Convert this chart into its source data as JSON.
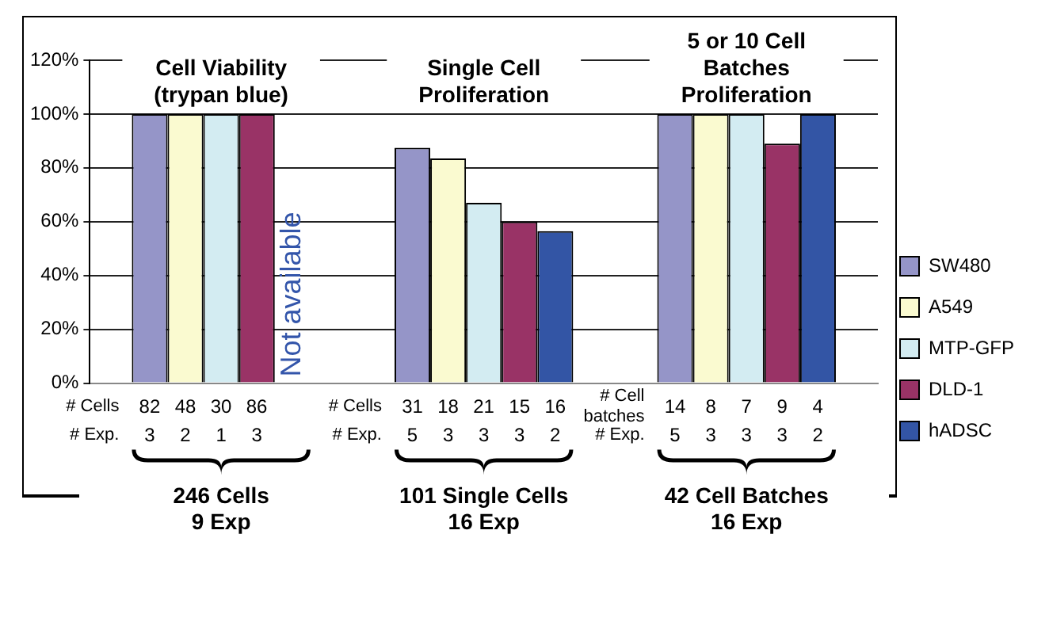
{
  "chart_data": {
    "type": "bar",
    "categories": [
      "246 Cells\n9 Exp",
      "101 Single Cells\n16 Exp",
      "42 Cell Batches\n16 Exp"
    ],
    "series": [
      {
        "name": "SW480",
        "color": "#9595c8",
        "values": [
          100,
          87.5,
          100
        ]
      },
      {
        "name": "A549",
        "color": "#fafad0",
        "values": [
          100,
          83.5,
          100
        ]
      },
      {
        "name": "MTP-GFP",
        "color": "#d3ecf2",
        "values": [
          100,
          67,
          100
        ]
      },
      {
        "name": "DLD-1",
        "color": "#993366",
        "values": [
          100,
          60,
          89
        ]
      },
      {
        "name": "hADSC",
        "color": "#3355a5",
        "values": [
          null,
          56.5,
          100
        ]
      }
    ],
    "ylim": [
      0,
      120
    ],
    "yticks": [
      {
        "value": 0,
        "label": "0%"
      },
      {
        "value": 20,
        "label": "20%"
      },
      {
        "value": 40,
        "label": "40%"
      },
      {
        "value": 60,
        "label": "60%"
      },
      {
        "value": 80,
        "label": "80%"
      },
      {
        "value": 100,
        "label": "100%"
      },
      {
        "value": 120,
        "label": "120%"
      }
    ],
    "grid": "y",
    "legend": "right",
    "annotations": [
      "Cell Viability\n(trypan blue)",
      "Single Cell\nProliferation",
      "5 or 10 Cell\nBatches\nProliferation",
      "Not available",
      "# Cells",
      "82 48 30 86",
      "# Exp.",
      "3 2 1 3",
      "# Cells",
      "31 18 21 15 16",
      "# Exp.",
      "5 3 3 3 2",
      "# Cell\nbatches",
      "14 8 7 9 4",
      "# Exp.",
      "5 3 3 3 2"
    ]
  }
}
